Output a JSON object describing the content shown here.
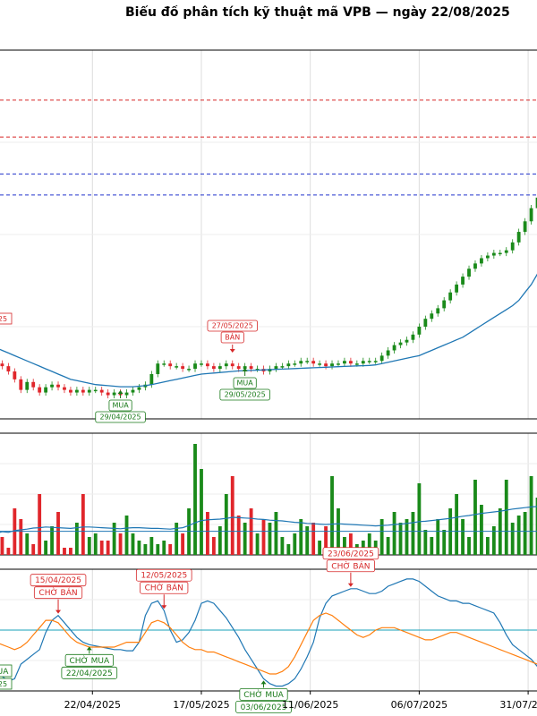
{
  "title": "Biểu đồ phân tích kỹ thuật mã VPB — ngày 22/08/2025",
  "colors": {
    "up": "#1a8a1a",
    "down": "#e0262b",
    "ma": "#1f77b4",
    "osc_fast": "#1f77b4",
    "osc_slow": "#ff7f0e",
    "buy": "#1a7a1a",
    "sell": "#d62728",
    "resistance": "#d62728",
    "support": "#2233cc",
    "mid": "#17a2b8"
  },
  "chart_data": [
    {
      "type": "candlestick",
      "x_tick_labels": [
        "2025",
        "22/04/2025",
        "17/05/2025",
        "11/06/2025",
        "06/07/2025",
        "31/07/2025"
      ],
      "dates": [
        "01/04/2025",
        "02/04/2025",
        "03/04/2025",
        "04/04/2025",
        "07/04/2025",
        "08/04/2025",
        "09/04/2025",
        "10/04/2025",
        "11/04/2025",
        "14/04/2025",
        "15/04/2025",
        "16/04/2025",
        "17/04/2025",
        "18/04/2025",
        "21/04/2025",
        "22/04/2025",
        "23/04/2025",
        "24/04/2025",
        "25/04/2025",
        "28/04/2025",
        "29/04/2025",
        "02/05/2025",
        "05/05/2025",
        "06/05/2025",
        "07/05/2025",
        "08/05/2025",
        "09/05/2025",
        "12/05/2025",
        "13/05/2025",
        "14/05/2025",
        "15/05/2025",
        "16/05/2025",
        "19/05/2025",
        "20/05/2025",
        "21/05/2025",
        "22/05/2025",
        "23/05/2025",
        "26/05/2025",
        "27/05/2025",
        "28/05/2025",
        "29/05/2025",
        "30/05/2025",
        "02/06/2025",
        "03/06/2025",
        "04/06/2025",
        "05/06/2025",
        "06/06/2025",
        "09/06/2025",
        "10/06/2025",
        "11/06/2025",
        "12/06/2025",
        "13/06/2025",
        "16/06/2025",
        "17/06/2025",
        "18/06/2025",
        "19/06/2025",
        "20/06/2025",
        "23/06/2025",
        "24/06/2025",
        "25/06/2025",
        "26/06/2025",
        "27/06/2025",
        "30/06/2025",
        "01/07/2025",
        "02/07/2025",
        "03/07/2025",
        "04/07/2025",
        "07/07/2025",
        "08/07/2025",
        "09/07/2025",
        "10/07/2025",
        "11/07/2025",
        "14/07/2025",
        "15/07/2025",
        "16/07/2025",
        "17/07/2025",
        "18/07/2025",
        "21/07/2025",
        "22/07/2025",
        "23/07/2025",
        "24/07/2025",
        "25/07/2025",
        "28/07/2025",
        "29/07/2025",
        "30/07/2025",
        "31/07/2025",
        "01/08/2025",
        "04/08/2025"
      ],
      "close": [
        17.6,
        17.5,
        17.3,
        17.0,
        16.6,
        16.9,
        16.7,
        16.5,
        16.7,
        16.8,
        16.7,
        16.6,
        16.5,
        16.6,
        16.5,
        16.6,
        16.6,
        16.5,
        16.4,
        16.5,
        16.4,
        16.5,
        16.6,
        16.7,
        16.8,
        17.2,
        17.6,
        17.6,
        17.5,
        17.5,
        17.4,
        17.4,
        17.6,
        17.6,
        17.5,
        17.4,
        17.5,
        17.6,
        17.5,
        17.4,
        17.5,
        17.4,
        17.4,
        17.3,
        17.4,
        17.5,
        17.5,
        17.6,
        17.6,
        17.7,
        17.7,
        17.6,
        17.6,
        17.5,
        17.6,
        17.6,
        17.7,
        17.6,
        17.6,
        17.7,
        17.7,
        17.7,
        17.9,
        18.1,
        18.3,
        18.4,
        18.5,
        18.7,
        19.0,
        19.3,
        19.5,
        19.7,
        20.0,
        20.3,
        20.6,
        20.9,
        21.2,
        21.4,
        21.6,
        21.7,
        21.8,
        21.8,
        21.9,
        22.2,
        22.6,
        23.0,
        23.5,
        23.9
      ],
      "ma": [
        18.2,
        18.1,
        18.0,
        17.9,
        17.8,
        17.7,
        17.6,
        17.5,
        17.4,
        17.3,
        17.2,
        17.1,
        17.0,
        16.95,
        16.9,
        16.85,
        16.8,
        16.78,
        16.76,
        16.74,
        16.72,
        16.72,
        16.72,
        16.74,
        16.76,
        16.8,
        16.85,
        16.9,
        16.95,
        17.0,
        17.05,
        17.1,
        17.15,
        17.2,
        17.22,
        17.24,
        17.26,
        17.28,
        17.3,
        17.32,
        17.33,
        17.34,
        17.35,
        17.36,
        17.37,
        17.38,
        17.39,
        17.4,
        17.41,
        17.42,
        17.43,
        17.44,
        17.45,
        17.46,
        17.47,
        17.48,
        17.49,
        17.5,
        17.51,
        17.52,
        17.53,
        17.55,
        17.6,
        17.65,
        17.7,
        17.75,
        17.8,
        17.85,
        17.9,
        18.0,
        18.1,
        18.2,
        18.3,
        18.4,
        18.5,
        18.6,
        18.75,
        18.9,
        19.05,
        19.2,
        19.35,
        19.5,
        19.65,
        19.8,
        20.0,
        20.3,
        20.6,
        21.0
      ],
      "resistance_levels": [
        27.6,
        26.2
      ],
      "support_levels": [
        24.8,
        24.0
      ],
      "ylim": [
        15.5,
        29.5
      ],
      "signals": [
        {
          "label": "27/05/2025",
          "text": "BÁN",
          "kind": "sell",
          "index": 38
        },
        {
          "label": "29/05/2025",
          "text": "MUA",
          "kind": "buy",
          "index": 40
        },
        {
          "label": "29/04/2025",
          "text": "MUA",
          "kind": "buy",
          "index": 20
        }
      ],
      "left_sell_label": "25"
    },
    {
      "type": "bar",
      "name": "volume",
      "values": [
        3,
        5,
        2,
        13,
        10,
        6,
        3,
        17,
        4,
        8,
        12,
        2,
        2,
        9,
        17,
        5,
        6,
        4,
        4,
        9,
        6,
        11,
        6,
        4,
        3,
        5,
        3,
        4,
        3,
        9,
        6,
        13,
        31,
        24,
        12,
        5,
        8,
        17,
        22,
        11,
        9,
        13,
        6,
        10,
        9,
        12,
        5,
        3,
        6,
        10,
        8,
        9,
        4,
        8,
        22,
        13,
        5,
        6,
        3,
        4,
        6,
        4,
        10,
        5,
        12,
        9,
        10,
        12,
        20,
        7,
        5,
        10,
        7,
        13,
        17,
        10,
        5,
        21,
        14,
        5,
        8,
        13,
        21,
        9,
        11,
        12,
        22,
        16
      ],
      "ma_fast": [
        6,
        6.5,
        6.3,
        6.8,
        7,
        7.2,
        7.5,
        7.6,
        7.8,
        7.7,
        7.6,
        7.5,
        7.4,
        7.6,
        7.8,
        7.8,
        7.7,
        7.6,
        7.5,
        7.4,
        7.3,
        7.5,
        7.6,
        7.6,
        7.5,
        7.4,
        7.4,
        7.3,
        7.2,
        7.4,
        7.6,
        8.2,
        9,
        9.6,
        9.8,
        9.9,
        10,
        10.2,
        10.5,
        10.4,
        10.3,
        10.2,
        10,
        9.9,
        9.7,
        9.6,
        9.5,
        9.3,
        9.1,
        9,
        8.8,
        8.7,
        8.6,
        8.5,
        8.6,
        8.7,
        8.6,
        8.5,
        8.4,
        8.3,
        8.2,
        8.1,
        8.2,
        8.3,
        8.5,
        8.6,
        8.8,
        9,
        9.3,
        9.4,
        9.6,
        9.8,
        10,
        10.2,
        10.5,
        10.8,
        11,
        11.3,
        11.6,
        11.8,
        12,
        12.2,
        12.5,
        12.8,
        13,
        13.2,
        13.4,
        13.5
      ],
      "ma_slow": [
        6.6,
        6.6,
        6.6,
        6.6,
        6.6,
        6.6,
        6.6,
        6.6,
        6.6,
        6.6,
        6.6,
        6.6,
        6.6,
        6.6,
        6.6,
        6.6,
        6.6,
        6.6,
        6.6,
        6.6,
        6.6,
        6.6,
        6.6,
        6.6,
        6.6,
        6.6,
        6.6,
        6.6,
        6.6,
        6.6,
        6.6,
        6.6,
        6.6,
        6.6,
        6.6,
        6.6,
        6.6,
        6.6,
        6.6,
        6.6,
        6.6,
        6.6,
        6.6,
        6.6,
        6.6,
        6.6,
        6.6,
        6.6,
        6.6,
        6.6,
        6.6,
        6.6,
        6.6,
        6.6,
        6.6,
        6.6,
        6.6,
        6.6,
        6.6,
        6.6,
        6.6,
        6.6,
        6.6,
        6.6,
        6.6,
        6.6,
        6.6,
        6.6,
        6.6,
        6.6,
        6.6,
        6.6,
        6.6,
        6.6,
        6.6,
        6.6,
        6.6,
        6.6,
        6.6,
        6.6,
        6.6,
        6.6,
        6.6,
        6.6,
        6.6,
        6.6,
        6.6,
        6.6
      ],
      "ylim": [
        0,
        34
      ]
    },
    {
      "type": "line",
      "name": "oscillator",
      "fast": [
        20,
        12,
        8,
        10,
        22,
        26,
        30,
        34,
        48,
        58,
        62,
        56,
        50,
        44,
        40,
        38,
        37,
        36,
        35,
        34,
        34,
        33,
        33,
        40,
        62,
        72,
        74,
        66,
        50,
        40,
        42,
        48,
        58,
        72,
        74,
        72,
        66,
        60,
        52,
        44,
        34,
        26,
        18,
        10,
        6,
        4,
        4,
        6,
        10,
        18,
        28,
        40,
        60,
        72,
        78,
        80,
        82,
        84,
        84,
        82,
        80,
        80,
        82,
        86,
        88,
        90,
        92,
        92,
        90,
        86,
        82,
        78,
        76,
        74,
        74,
        72,
        72,
        70,
        68,
        66,
        64,
        56,
        46,
        38,
        34,
        30,
        26,
        20
      ],
      "slow": [
        40,
        38,
        36,
        34,
        36,
        40,
        46,
        52,
        58,
        58,
        56,
        50,
        44,
        40,
        38,
        36,
        36,
        36,
        36,
        36,
        38,
        40,
        40,
        40,
        48,
        56,
        58,
        56,
        52,
        46,
        40,
        36,
        34,
        34,
        32,
        32,
        30,
        28,
        26,
        24,
        22,
        20,
        18,
        16,
        14,
        14,
        16,
        20,
        28,
        38,
        48,
        58,
        62,
        64,
        62,
        58,
        54,
        50,
        46,
        44,
        46,
        50,
        52,
        52,
        52,
        50,
        48,
        46,
        44,
        42,
        42,
        44,
        46,
        48,
        48,
        46,
        44,
        42,
        40,
        38,
        36,
        34,
        32,
        30,
        28,
        26,
        24,
        22
      ],
      "mid_level": 50,
      "ylim": [
        0,
        100
      ],
      "signals": [
        {
          "label": "15/04/2025",
          "text": "CHỜ BÁN",
          "kind": "sell",
          "index": 10
        },
        {
          "label": "12/05/2025",
          "text": "CHỜ BÁN",
          "kind": "sell",
          "index": 27
        },
        {
          "label": "23/06/2025",
          "text": "CHỜ BÁN",
          "kind": "sell",
          "index": 57
        },
        {
          "label": "22/04/2025",
          "text": "CHỜ MUA",
          "kind": "buy",
          "index": 15
        },
        {
          "label": "03/06/2025",
          "text": "CHỜ MUA",
          "kind": "buy",
          "index": 43
        },
        {
          "label": "25",
          "text": "UA",
          "kind": "buy",
          "index": 0
        }
      ]
    }
  ]
}
